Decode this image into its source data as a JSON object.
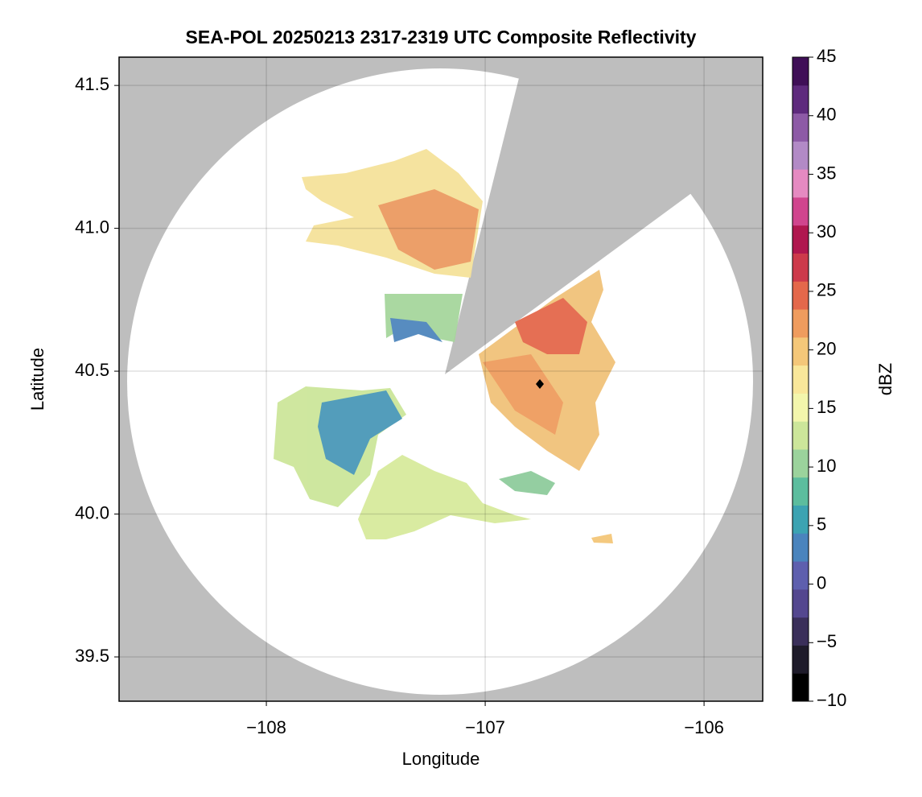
{
  "chart_data": {
    "type": "radar-map",
    "title": "SEA-POL 20250213 2317-2319 UTC Composite Reflectivity",
    "xlabel": "Longitude",
    "ylabel": "Latitude",
    "xlim": [
      -108.673,
      -105.732
    ],
    "ylim": [
      39.345,
      41.599
    ],
    "xticks": [
      {
        "value": -108,
        "label": "−108"
      },
      {
        "value": -107,
        "label": "−107"
      },
      {
        "value": -106,
        "label": "−106"
      }
    ],
    "yticks": [
      {
        "value": 39.5,
        "label": "39.5"
      },
      {
        "value": 40.0,
        "label": "40.0"
      },
      {
        "value": 40.5,
        "label": "40.5"
      },
      {
        "value": 41.0,
        "label": "41.0"
      },
      {
        "value": 41.5,
        "label": "41.5"
      }
    ],
    "grid": true,
    "colorbar": {
      "label": "dBZ",
      "lim": [
        -10,
        45
      ],
      "ticks": [
        {
          "value": -10,
          "label": "−10"
        },
        {
          "value": -5,
          "label": "−5"
        },
        0,
        5,
        10,
        15,
        20,
        25,
        30,
        35,
        40,
        45
      ],
      "colors": [
        "#000000",
        "#1e1b2a",
        "#3a2f5a",
        "#54478f",
        "#5e5fae",
        "#4a84bd",
        "#3ca3b2",
        "#5cbd9e",
        "#9bd39c",
        "#cce69a",
        "#f3f6ac",
        "#f9e79a",
        "#f4c779",
        "#ef9c5e",
        "#e4684b",
        "#cd3a4b",
        "#b0174f",
        "#d0458e",
        "#e58ac1",
        "#b28ac6",
        "#8d5aa6",
        "#5e2a7d",
        "#3f0f57"
      ]
    }
  }
}
